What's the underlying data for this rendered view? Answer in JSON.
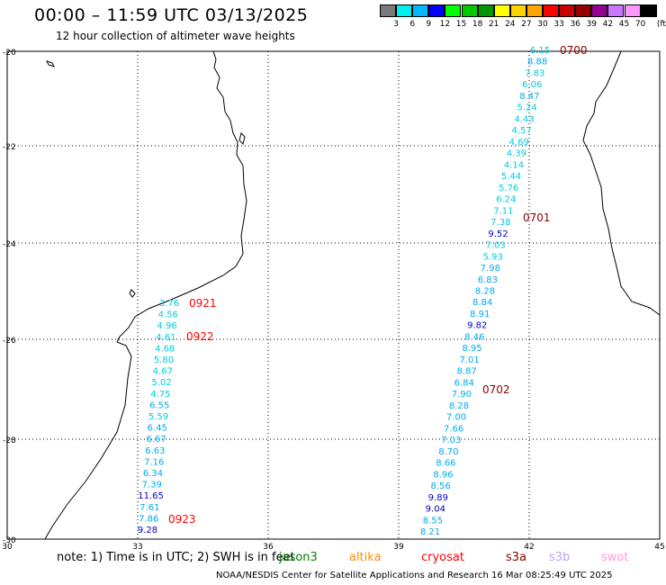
{
  "header": {
    "title": "00:00 – 11:59 UTC 03/13/2025",
    "subtitle": "12 hour collection of altimeter wave heights"
  },
  "colorbar": {
    "unit": "(ft)",
    "labels": [
      "3",
      "6",
      "9",
      "12",
      "15",
      "18",
      "21",
      "24",
      "27",
      "30",
      "33",
      "36",
      "39",
      "42",
      "45",
      "70"
    ],
    "colors": [
      "#7a7a7a",
      "#00f0f0",
      "#00b8ff",
      "#0000ff",
      "#00ff00",
      "#00c800",
      "#009600",
      "#ffff00",
      "#ffd200",
      "#ffa500",
      "#ff0000",
      "#c80000",
      "#960000",
      "#960096",
      "#c878ff",
      "#ff96ff",
      "#000000"
    ]
  },
  "map": {
    "lat_ticks": [
      "-20",
      "-22",
      "-24",
      "-26",
      "-28",
      "-30"
    ],
    "lon_ticks": [
      "30",
      "33",
      "36",
      "39",
      "42",
      "45"
    ]
  },
  "tracks": [
    {
      "name": "west",
      "times": [
        {
          "label": "0921",
          "color": "#ff0000"
        },
        {
          "label": "0922",
          "color": "#ff0000"
        },
        {
          "label": "0923",
          "color": "#ff0000"
        }
      ],
      "values": [
        {
          "v": "3.76",
          "c": "#00ccdd"
        },
        {
          "v": "4.56",
          "c": "#00ccdd"
        },
        {
          "v": "4.96",
          "c": "#00ccdd"
        },
        {
          "v": "4.61",
          "c": "#00ccdd"
        },
        {
          "v": "4.68",
          "c": "#00ccdd"
        },
        {
          "v": "5.80",
          "c": "#00ccdd"
        },
        {
          "v": "4.67",
          "c": "#00ccdd"
        },
        {
          "v": "5.02",
          "c": "#00ccdd"
        },
        {
          "v": "4.75",
          "c": "#00ccdd"
        },
        {
          "v": "6.55",
          "c": "#00aaee"
        },
        {
          "v": "5.59",
          "c": "#00ccdd"
        },
        {
          "v": "6.45",
          "c": "#00aaee"
        },
        {
          "v": "6.67",
          "c": "#00aaee"
        },
        {
          "v": "6.63",
          "c": "#00aaee"
        },
        {
          "v": "7.16",
          "c": "#00aaee"
        },
        {
          "v": "6.34",
          "c": "#00aaee"
        },
        {
          "v": "7.39",
          "c": "#00aaee"
        },
        {
          "v": "11.65",
          "c": "#0000cc"
        },
        {
          "v": "7.61",
          "c": "#00aaee"
        },
        {
          "v": "7.86",
          "c": "#00aaee"
        },
        {
          "v": "9.28",
          "c": "#0000cc"
        }
      ]
    },
    {
      "name": "east",
      "times": [
        {
          "label": "0700",
          "color": "#8b0000"
        },
        {
          "label": "0701",
          "color": "#8b0000"
        },
        {
          "label": "0702",
          "color": "#8b0000"
        }
      ],
      "values": [
        {
          "v": "6.15",
          "c": "#00ccdd"
        },
        {
          "v": "8.88",
          "c": "#00aaee"
        },
        {
          "v": "7.83",
          "c": "#00ccdd"
        },
        {
          "v": "6.06",
          "c": "#00ccdd"
        },
        {
          "v": "8.47",
          "c": "#00aaee"
        },
        {
          "v": "5.24",
          "c": "#00ccdd"
        },
        {
          "v": "4.43",
          "c": "#00ccdd"
        },
        {
          "v": "4.57",
          "c": "#00ccdd"
        },
        {
          "v": "4.69",
          "c": "#00ccdd"
        },
        {
          "v": "4.39",
          "c": "#00ccdd"
        },
        {
          "v": "4.14",
          "c": "#00ccdd"
        },
        {
          "v": "5.44",
          "c": "#00ccdd"
        },
        {
          "v": "5.76",
          "c": "#00ccdd"
        },
        {
          "v": "6.24",
          "c": "#00ccdd"
        },
        {
          "v": "7.11",
          "c": "#00ccdd"
        },
        {
          "v": "7.38",
          "c": "#00ccdd"
        },
        {
          "v": "9.52",
          "c": "#0000cc"
        },
        {
          "v": "7.03",
          "c": "#00ccdd"
        },
        {
          "v": "5.93",
          "c": "#00ccdd"
        },
        {
          "v": "7.98",
          "c": "#00aaee"
        },
        {
          "v": "6.83",
          "c": "#00aaee"
        },
        {
          "v": "8.28",
          "c": "#00aaee"
        },
        {
          "v": "8.84",
          "c": "#00aaee"
        },
        {
          "v": "8.91",
          "c": "#00aaee"
        },
        {
          "v": "9.82",
          "c": "#0000cc"
        },
        {
          "v": "8.46",
          "c": "#00aaee"
        },
        {
          "v": "8.95",
          "c": "#00aaee"
        },
        {
          "v": "7.01",
          "c": "#00aaee"
        },
        {
          "v": "8.87",
          "c": "#00aaee"
        },
        {
          "v": "6.84",
          "c": "#00aaee"
        },
        {
          "v": "7.90",
          "c": "#00aaee"
        },
        {
          "v": "8.28",
          "c": "#00aaee"
        },
        {
          "v": "7.00",
          "c": "#00aaee"
        },
        {
          "v": "7.66",
          "c": "#00aaee"
        },
        {
          "v": "7.03",
          "c": "#00aaee"
        },
        {
          "v": "8.70",
          "c": "#00aaee"
        },
        {
          "v": "8.66",
          "c": "#00aaee"
        },
        {
          "v": "8.96",
          "c": "#00aaee"
        },
        {
          "v": "8.56",
          "c": "#00aaee"
        },
        {
          "v": "9.89",
          "c": "#0000cc"
        },
        {
          "v": "9.04",
          "c": "#0000cc"
        },
        {
          "v": "8.55",
          "c": "#00aaee"
        },
        {
          "v": "8.21",
          "c": "#00aaee"
        }
      ]
    }
  ],
  "footer": {
    "note": "note:  1) Time is in UTC;  2) SWH is in feet",
    "satellites": [
      {
        "name": "jason3",
        "color": "#008000"
      },
      {
        "name": "altika",
        "color": "#ff8c00"
      },
      {
        "name": "cryosat",
        "color": "#ff0000"
      },
      {
        "name": "s3a",
        "color": "#8b0000"
      },
      {
        "name": "s3b",
        "color": "#c0a0ff"
      },
      {
        "name": "swot",
        "color": "#ff99dd"
      }
    ],
    "credit": "NOAA/NESDIS Center for Satellite Applications and Research    16 Mar 08:25:49 UTC 2025"
  }
}
